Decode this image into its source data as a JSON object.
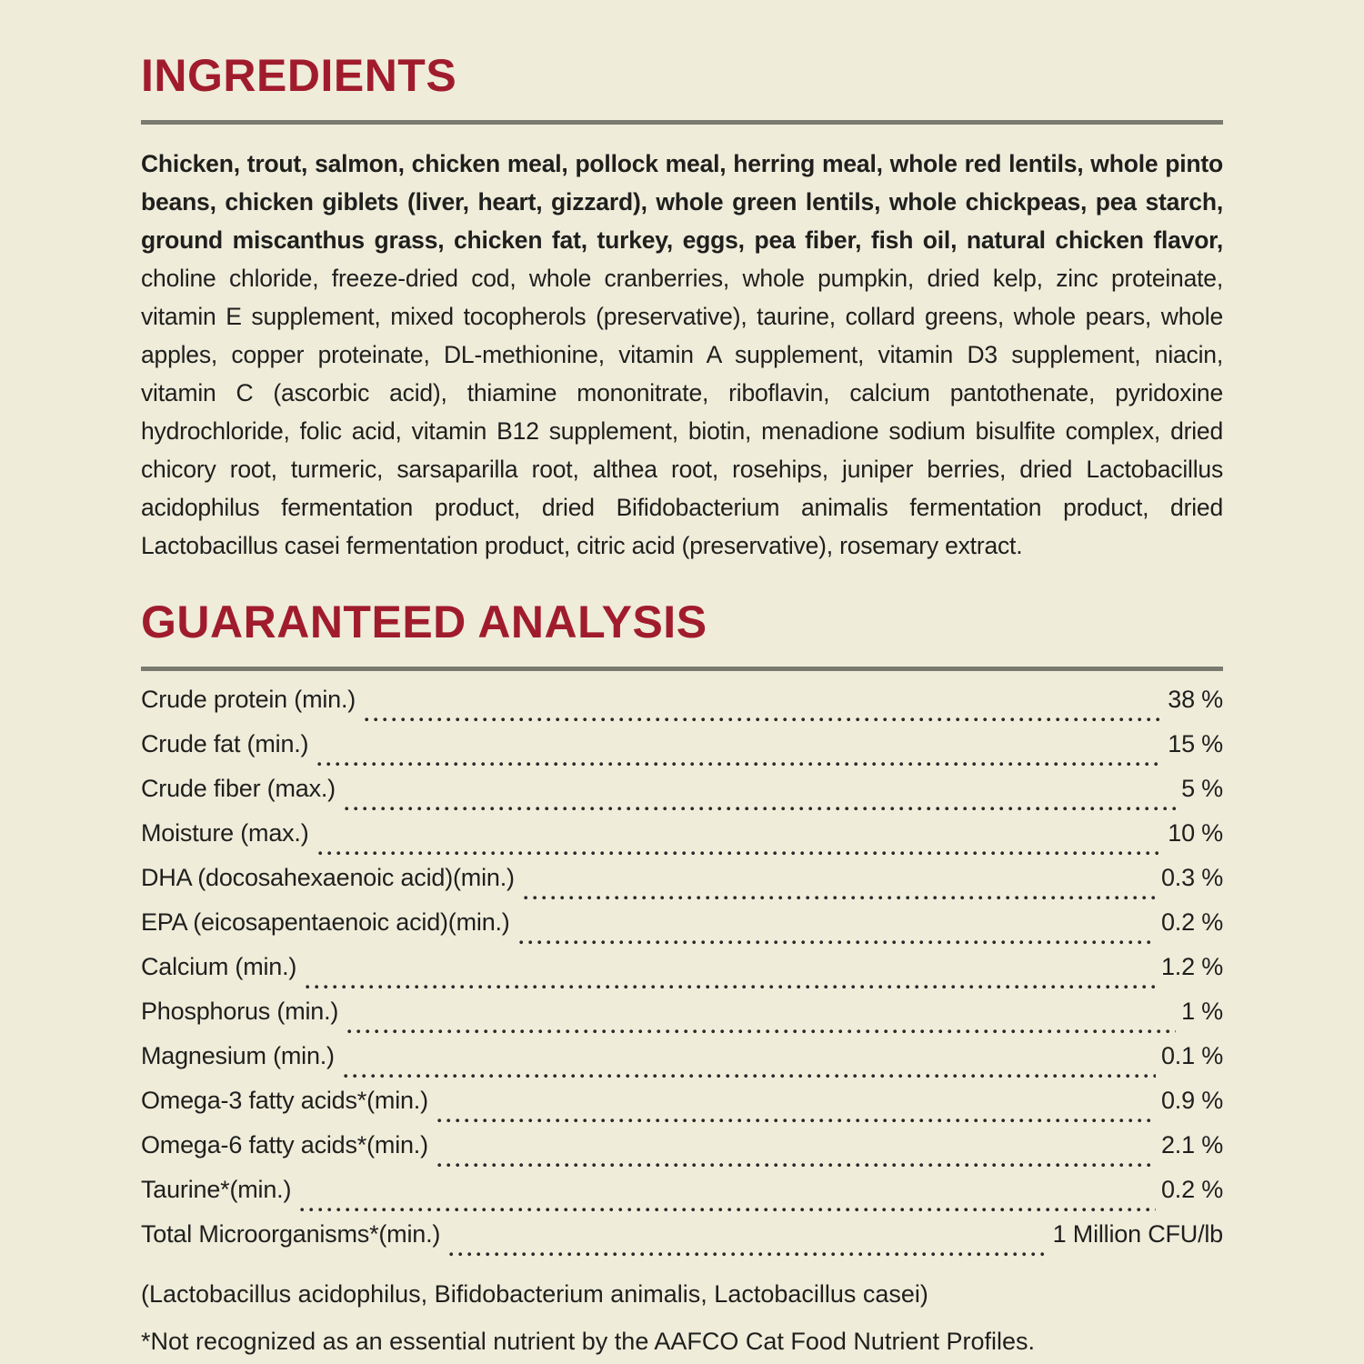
{
  "theme": {
    "background_color": "#efecda",
    "accent_color": "#a01c2d",
    "rule_color": "#7b7a70",
    "text_color": "#1f1f1d"
  },
  "ingredients": {
    "heading": "INGREDIENTS",
    "primary": "Chicken, trout, salmon, chicken meal, pollock meal, herring meal, whole red lentils, whole pinto beans, chicken giblets (liver, heart, gizzard), whole green lentils, whole chickpeas, pea starch, ground miscanthus grass, chicken fat, turkey, eggs, pea fiber, fish oil, natural chicken flavor,",
    "secondary": "choline chloride, freeze-dried cod, whole cranberries, whole pumpkin, dried kelp, zinc proteinate, vitamin E supplement, mixed tocopherols (preservative), taurine, collard greens, whole pears, whole apples, copper proteinate, DL-methionine, vitamin A supplement, vitamin D3 supplement, niacin, vitamin C (ascorbic acid), thiamine mononitrate, riboflavin, calcium pantothenate, pyridoxine hydrochloride, folic acid, vitamin B12 supplement, biotin, menadione sodium bisulfite complex, dried chicory root, turmeric, sarsaparilla root, althea root, rosehips, juniper berries, dried Lactobacillus acidophilus fermentation product, dried Bifidobacterium animalis fermentation product, dried Lactobacillus casei fermentation product, citric acid (preservative), rosemary extract."
  },
  "analysis": {
    "heading": "GUARANTEED ANALYSIS",
    "rows": [
      {
        "label": "Crude protein (min.)",
        "value": "38 %"
      },
      {
        "label": "Crude fat (min.)",
        "value": "15 %"
      },
      {
        "label": "Crude fiber (max.)",
        "value": "5 %"
      },
      {
        "label": "Moisture (max.)",
        "value": "10 %"
      },
      {
        "label": "DHA (docosahexaenoic acid)(min.)",
        "value": "0.3 %"
      },
      {
        "label": "EPA (eicosapentaenoic acid)(min.)",
        "value": "0.2 %"
      },
      {
        "label": "Calcium (min.)",
        "value": "1.2 %"
      },
      {
        "label": "Phosphorus (min.)",
        "value": "1 %"
      },
      {
        "label": "Magnesium (min.)",
        "value": "0.1 %"
      },
      {
        "label": "Omega-3 fatty acids*(min.)",
        "value": "0.9 %"
      },
      {
        "label": "Omega-6 fatty acids*(min.)",
        "value": "2.1 %"
      },
      {
        "label": "Taurine*(min.)",
        "value": "0.2 %"
      },
      {
        "label": "Total Microorganisms*(min.)",
        "value": "1 Million CFU/lb"
      }
    ],
    "microorganisms_detail": "(Lactobacillus acidophilus, Bifidobacterium animalis, Lactobacillus casei)",
    "footnote": "*Not recognized as an essential nutrient by the AAFCO Cat Food Nutrient Profiles."
  }
}
